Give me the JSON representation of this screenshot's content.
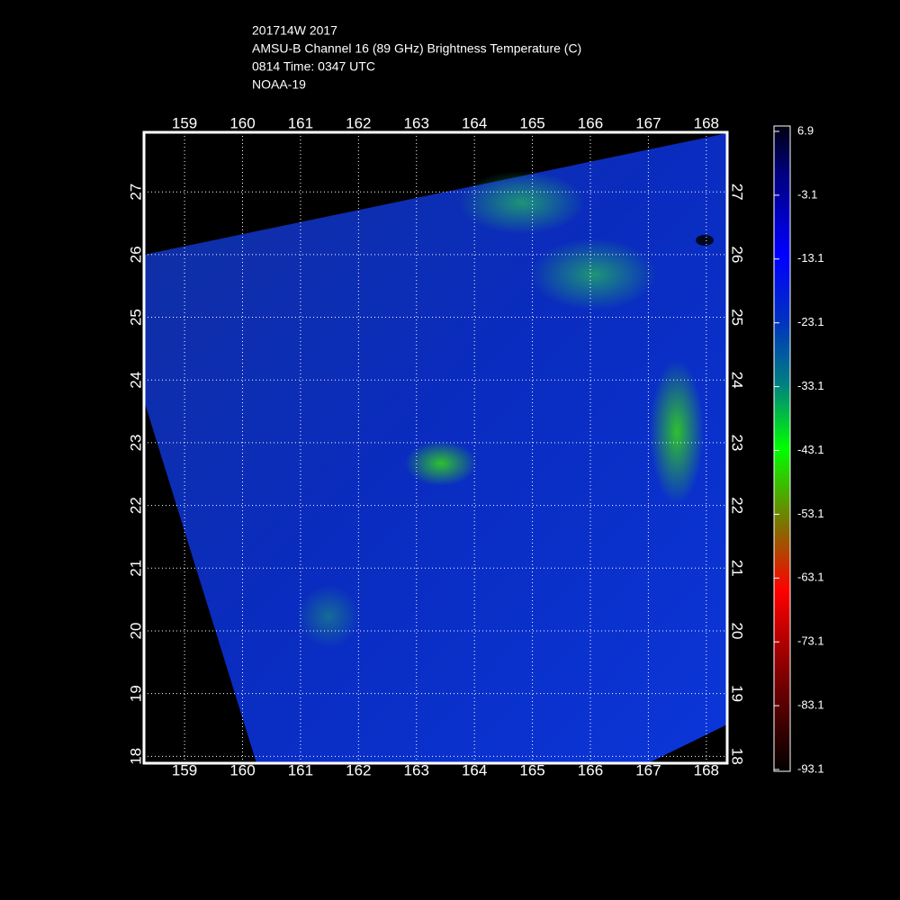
{
  "header": {
    "lines": [
      "201714W 2017",
      "AMSU-B Channel 16 (89 GHz) Brightness Temperature (C)",
      "0814 Time: 0347 UTC",
      "NOAA-19"
    ]
  },
  "map": {
    "xlim": [
      158.3,
      168.36
    ],
    "ylim": [
      17.89,
      27.95
    ],
    "xticks": [
      159,
      160,
      161,
      162,
      163,
      164,
      165,
      166,
      167,
      168
    ],
    "yticks": [
      18,
      19,
      20,
      21,
      22,
      23,
      24,
      25,
      26,
      27
    ],
    "grid": true
  },
  "colorbar": {
    "lim": [
      -93.1,
      6.9
    ],
    "ticks": [
      6.9,
      -3.1,
      -13.1,
      -23.1,
      -33.1,
      -43.1,
      -53.1,
      -63.1,
      -73.1,
      -83.1,
      -93.1
    ]
  }
}
